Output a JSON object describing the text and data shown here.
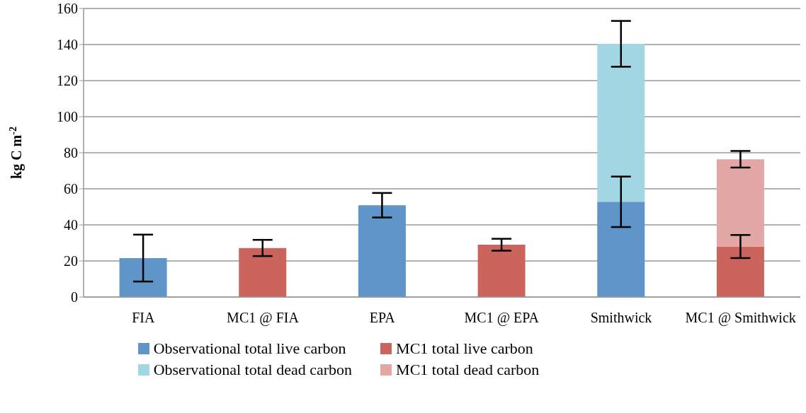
{
  "chart_data": {
    "type": "bar",
    "stacked": true,
    "ylabel": "kg C m$^{-2}$",
    "categories": [
      "FIA",
      "MC1 @ FIA",
      "EPA",
      "MC1 @ EPA",
      "Smithwick",
      "MC1 @ Smithwick"
    ],
    "series": [
      {
        "name": "Observational total live carbon",
        "color": "#5f95c9",
        "values": [
          21.6,
          null,
          50.9,
          null,
          52.8,
          null
        ],
        "errors": [
          13,
          null,
          6.8,
          null,
          14,
          null
        ]
      },
      {
        "name": "MC1 total live carbon",
        "color": "#cc645e",
        "values": [
          null,
          27.2,
          null,
          29,
          null,
          28
        ],
        "errors": [
          null,
          4.5,
          null,
          3.3,
          null,
          6.4
        ]
      },
      {
        "name": "Observational total dead carbon",
        "color": "#a3d6e3",
        "values": [
          null,
          null,
          null,
          null,
          87.6,
          null
        ],
        "errors": [
          null,
          null,
          null,
          null,
          12.7,
          null
        ]
      },
      {
        "name": "MC1 total dead carbon",
        "color": "#e3a8a6",
        "values": [
          null,
          null,
          null,
          null,
          null,
          48.4
        ],
        "errors": [
          null,
          null,
          null,
          null,
          null,
          4.6
        ]
      }
    ],
    "ylim": [
      0,
      160
    ],
    "yticks": [
      0,
      20,
      40,
      60,
      80,
      100,
      120,
      140,
      160
    ],
    "grid": "y",
    "legend": "bottom"
  }
}
